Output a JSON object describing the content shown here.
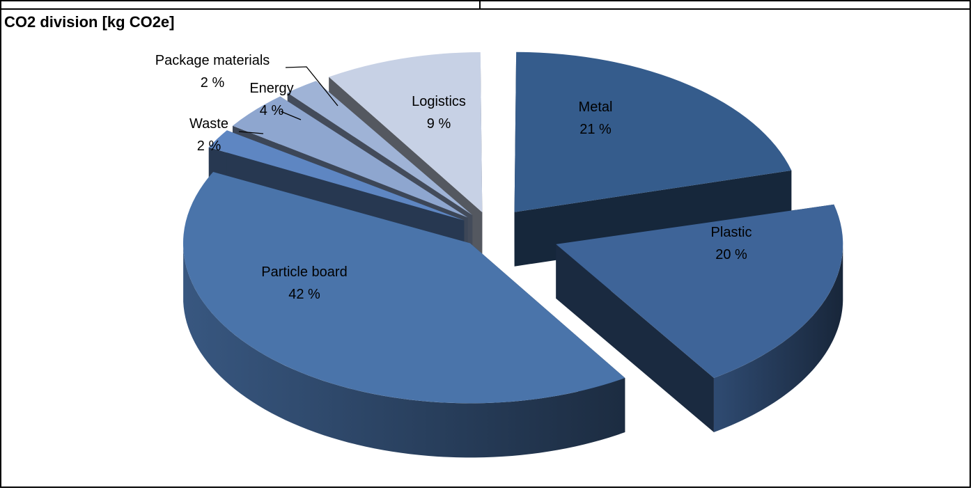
{
  "header": {
    "title": "CO2 division [kg CO2e]"
  },
  "chart_data": {
    "type": "pie",
    "title": "CO2 division [kg CO2e]",
    "categories": [
      "Metal",
      "Plastic",
      "Particle board",
      "Waste",
      "Energy",
      "Package materials",
      "Logistics"
    ],
    "values": [
      21,
      20,
      42,
      2,
      4,
      2,
      9
    ],
    "labels": [
      "21 %",
      "20 %",
      "42 %",
      "2 %",
      "4 %",
      "2 %",
      "9 %"
    ],
    "colors": [
      "#355C8C",
      "#3E6498",
      "#4A74AA",
      "#5E86C2",
      "#8EA6CF",
      "#9FB3D6",
      "#C7D1E5"
    ],
    "style": "3d-exploded"
  }
}
